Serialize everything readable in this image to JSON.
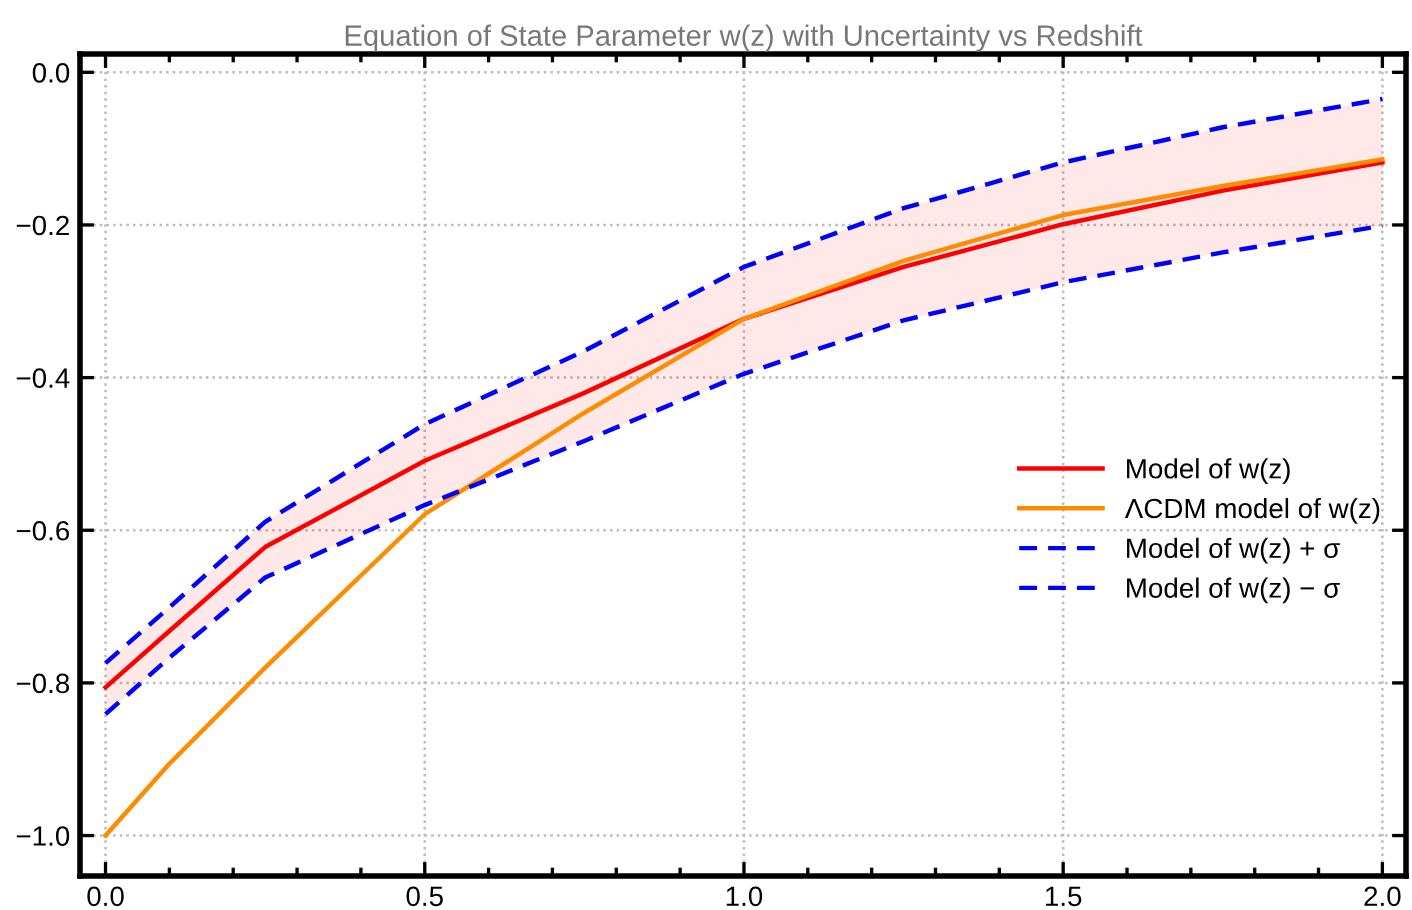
{
  "chart_data": {
    "type": "line",
    "title": "Equation of State Parameter w(z) with Uncertainty vs Redshift",
    "x": [
      0,
      0.1,
      0.25,
      0.5,
      0.75,
      1.0,
      1.25,
      1.5,
      1.75,
      2.0
    ],
    "series": [
      {
        "name": "Model of w(z)",
        "color": "#ff0000",
        "line_style": "solid",
        "values": [
          -0.806,
          -0.732,
          -0.622,
          -0.509,
          -0.42,
          -0.323,
          -0.255,
          -0.199,
          -0.155,
          -0.118
        ],
        "upper": [
          -0.774,
          -0.701,
          -0.589,
          -0.461,
          -0.365,
          -0.255,
          -0.178,
          -0.118,
          -0.072,
          -0.035
        ],
        "lower": [
          -0.841,
          -0.767,
          -0.662,
          -0.567,
          -0.483,
          -0.395,
          -0.325,
          -0.275,
          -0.236,
          -0.201
        ]
      },
      {
        "name": "ΛCDM model of w(z)",
        "color": "#ff8c00",
        "line_style": "solid",
        "values": [
          -1.0,
          -0.906,
          -0.78,
          -0.579,
          -0.446,
          -0.323,
          -0.247,
          -0.187,
          -0.149,
          -0.114
        ]
      },
      {
        "name": "Model of w(z) + σ",
        "color": "#0000ff",
        "line_style": "dashed",
        "values": [
          -0.774,
          -0.701,
          -0.589,
          -0.461,
          -0.365,
          -0.255,
          -0.178,
          -0.118,
          -0.072,
          -0.035
        ]
      },
      {
        "name": "Model of w(z) − σ",
        "color": "#0000ff",
        "line_style": "dashed",
        "values": [
          -0.841,
          -0.767,
          -0.662,
          -0.567,
          -0.483,
          -0.395,
          -0.325,
          -0.275,
          -0.236,
          -0.201
        ]
      }
    ],
    "xlim": [
      -0.04,
      2.037
    ],
    "ylim": [
      -1.053,
      0.024
    ],
    "xticks": [
      {
        "value": 0,
        "label": "0.0"
      },
      {
        "value": 0.1,
        "label": null
      },
      {
        "value": 0.2,
        "label": null
      },
      {
        "value": 0.3,
        "label": null
      },
      {
        "value": 0.4,
        "label": null
      },
      0.5,
      {
        "value": 0.6,
        "label": null
      },
      {
        "value": 0.7,
        "label": null
      },
      {
        "value": 0.8,
        "label": null
      },
      {
        "value": 0.9,
        "label": null
      },
      {
        "value": 1.0,
        "label": "1.0"
      },
      {
        "value": 1.1,
        "label": null
      },
      {
        "value": 1.2,
        "label": null
      },
      {
        "value": 1.3,
        "label": null
      },
      {
        "value": 1.4,
        "label": null
      },
      1.5,
      {
        "value": 1.6,
        "label": null
      },
      {
        "value": 1.7,
        "label": null
      },
      {
        "value": 1.8,
        "label": null
      },
      {
        "value": 1.9,
        "label": null
      },
      {
        "value": 2.0,
        "label": "2.0"
      }
    ],
    "yticks": [
      {
        "value": -1.0,
        "label": "−1.0"
      },
      {
        "value": -0.8,
        "label": "−0.8"
      },
      {
        "value": -0.6,
        "label": "−0.6"
      },
      {
        "value": -0.4,
        "label": "−0.4"
      },
      {
        "value": -0.2,
        "label": "−0.2"
      },
      {
        "value": 0,
        "label": "0.0"
      }
    ],
    "grid": true,
    "legend": "right"
  }
}
